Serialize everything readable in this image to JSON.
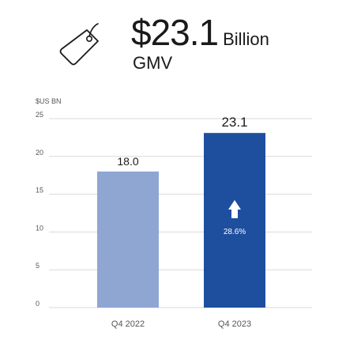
{
  "headline": {
    "value": "$23.1",
    "unit": "Billion",
    "subtitle": "GMV"
  },
  "icons": {
    "tag": "price-tag-icon",
    "growth": "up-arrow-icon"
  },
  "colors": {
    "bar_prior": "#8fa6d2",
    "bar_current": "#1e4e9e",
    "text": "#1a1a1a",
    "axis_text": "#555555",
    "grid": "#d9d9d9"
  },
  "chart_data": {
    "type": "bar",
    "unit_label": "$US BN",
    "categories": [
      "Q4 2022",
      "Q4 2023"
    ],
    "values": [
      18.0,
      23.1
    ],
    "data_labels": [
      "18.0",
      "23.1"
    ],
    "yticks": [
      0,
      5,
      10,
      15,
      20,
      25
    ],
    "ylim": [
      0,
      25
    ],
    "grid": true,
    "growth_label": "28.6%"
  }
}
